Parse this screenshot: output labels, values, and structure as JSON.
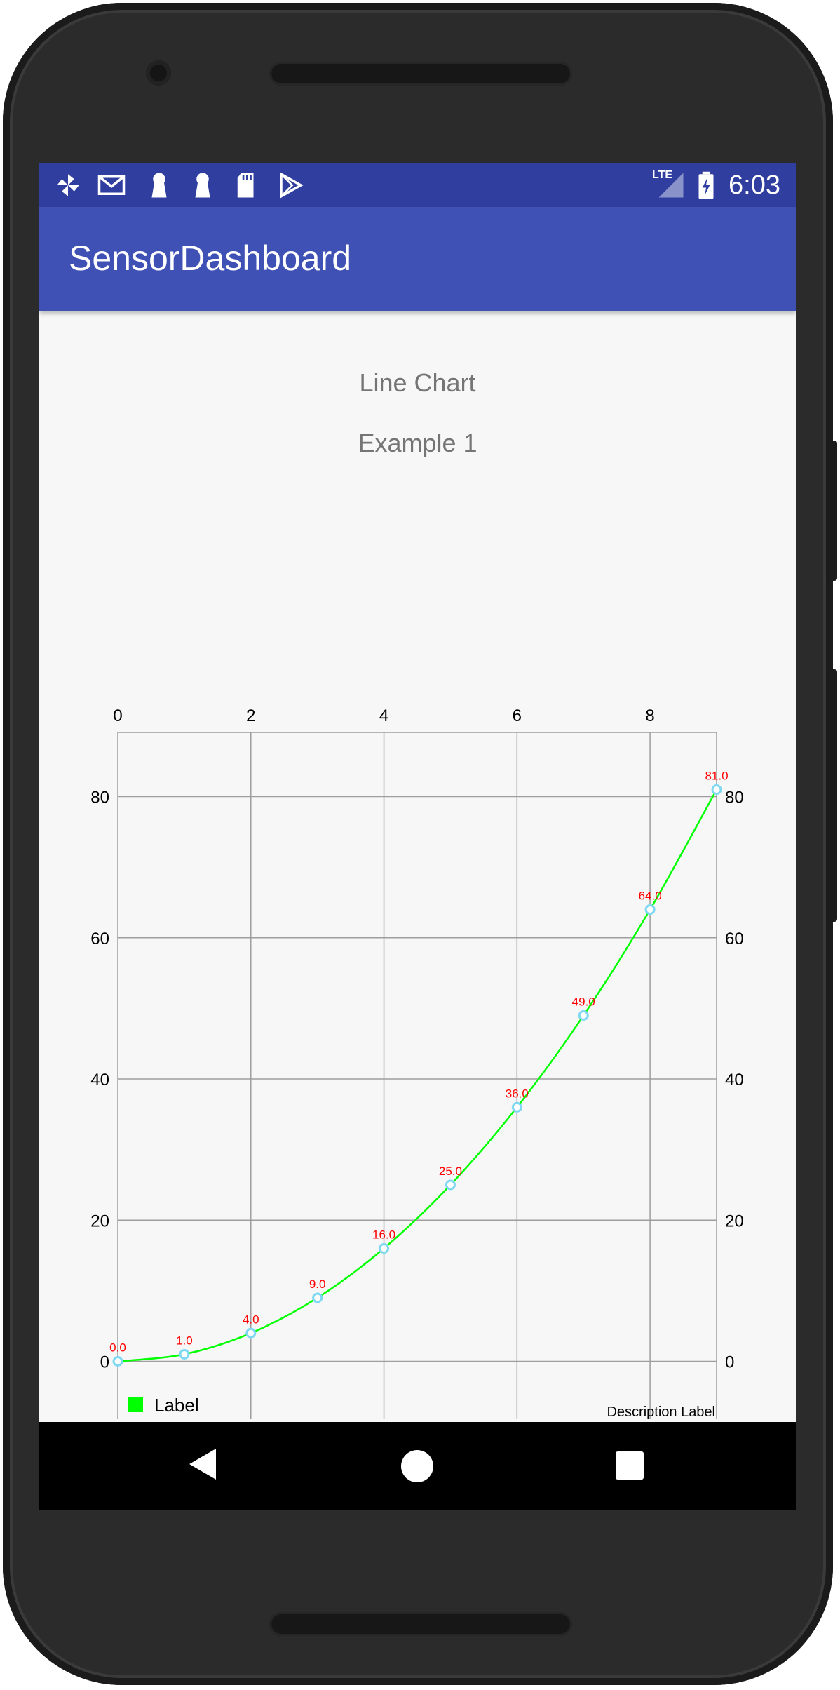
{
  "status_bar": {
    "network": "LTE",
    "time": "6:03",
    "icons": [
      "pinwheel-icon",
      "gmail-icon",
      "keyhole-icon",
      "keyhole-icon",
      "sd-card-icon",
      "play-store-icon",
      "signal-icon",
      "battery-charging-icon"
    ]
  },
  "app_bar": {
    "title": "SensorDashboard"
  },
  "content": {
    "title": "Line Chart",
    "subtitle": "Example 1"
  },
  "chart_data": {
    "type": "line",
    "x": [
      0,
      1,
      2,
      3,
      4,
      5,
      6,
      7,
      8,
      9
    ],
    "series": [
      {
        "name": "Label",
        "values": [
          0,
          1,
          4,
          9,
          16,
          25,
          36,
          49,
          64,
          81
        ],
        "color": "#00ff00"
      }
    ],
    "value_labels": [
      "0.0",
      "1.0",
      "4.0",
      "9.0",
      "16.0",
      "25.0",
      "36.0",
      "49.0",
      "64.0",
      "81.0"
    ],
    "x_ticks": [
      "0",
      "2",
      "4",
      "6",
      "8"
    ],
    "x_tick_values": [
      0,
      2,
      4,
      6,
      8
    ],
    "y_ticks": [
      "0",
      "20",
      "40",
      "60",
      "80"
    ],
    "y_tick_values": [
      0,
      20,
      40,
      60,
      80
    ],
    "xlim": [
      0,
      9
    ],
    "ylim": [
      -8.1,
      89.1
    ],
    "x_axis_position": "top",
    "y_axis": "both sides",
    "grid": true,
    "description": "Description Label",
    "legend_position": "bottom-left",
    "value_label_color": "#ff0000",
    "marker_color": "#7fd8f2"
  },
  "legend": {
    "label": "Label"
  },
  "nav_bar": {
    "buttons": [
      "back-icon",
      "home-icon",
      "recent-apps-icon"
    ]
  }
}
